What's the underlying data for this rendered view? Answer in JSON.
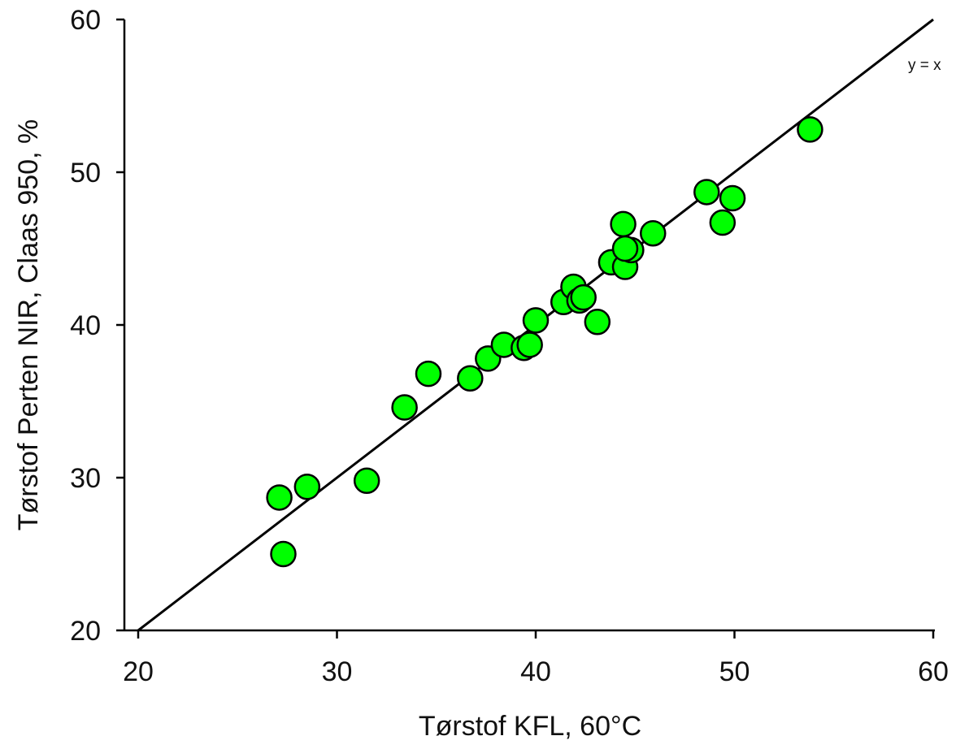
{
  "chart_data": {
    "type": "scatter",
    "title": "",
    "xlabel": "Tørstof KFL, 60°C",
    "ylabel": "Tørstof Perten NIR, Claas 950, %",
    "xlim": [
      20,
      60
    ],
    "ylim": [
      20,
      60
    ],
    "x_ticks": [
      "20",
      "30",
      "40",
      "50",
      "60"
    ],
    "y_ticks": [
      "20",
      "30",
      "40",
      "50",
      "60"
    ],
    "grid": false,
    "reference_line": {
      "label": "y = x",
      "from": [
        20,
        20
      ],
      "to": [
        60,
        60
      ]
    },
    "marker_color": "#00ff00",
    "marker_edge_color": "#000000",
    "points": [
      {
        "x": 27.1,
        "y": 28.7
      },
      {
        "x": 27.3,
        "y": 25.0
      },
      {
        "x": 28.5,
        "y": 29.4
      },
      {
        "x": 31.5,
        "y": 29.8
      },
      {
        "x": 33.4,
        "y": 34.6
      },
      {
        "x": 34.6,
        "y": 36.8
      },
      {
        "x": 36.7,
        "y": 36.5
      },
      {
        "x": 37.6,
        "y": 37.8
      },
      {
        "x": 38.4,
        "y": 38.7
      },
      {
        "x": 39.4,
        "y": 38.5
      },
      {
        "x": 39.7,
        "y": 38.7
      },
      {
        "x": 40.0,
        "y": 40.3
      },
      {
        "x": 41.4,
        "y": 41.5
      },
      {
        "x": 41.9,
        "y": 42.5
      },
      {
        "x": 42.2,
        "y": 41.6
      },
      {
        "x": 42.4,
        "y": 41.8
      },
      {
        "x": 43.1,
        "y": 40.2
      },
      {
        "x": 43.8,
        "y": 44.1
      },
      {
        "x": 44.4,
        "y": 46.6
      },
      {
        "x": 44.5,
        "y": 43.8
      },
      {
        "x": 44.8,
        "y": 44.9
      },
      {
        "x": 44.5,
        "y": 45.0
      },
      {
        "x": 45.9,
        "y": 46.0
      },
      {
        "x": 48.6,
        "y": 48.7
      },
      {
        "x": 49.4,
        "y": 46.7
      },
      {
        "x": 49.9,
        "y": 48.3
      },
      {
        "x": 53.8,
        "y": 52.8
      }
    ]
  }
}
